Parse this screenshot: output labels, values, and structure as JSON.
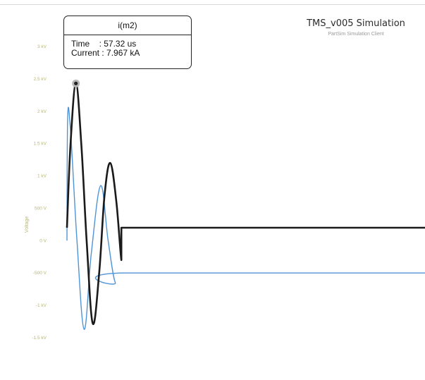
{
  "header": {
    "title": "TMS_v005 Simulation",
    "subtitle": "PartSim Simulation Client"
  },
  "tooltip": {
    "title": "i(m2)",
    "time_label": "Time",
    "time_value": "57.32 us",
    "current_label": "Current",
    "current_value": "7.967 kA"
  },
  "colors": {
    "primary_series": "#1a1a1a",
    "secondary_series": "#4f94d6",
    "axis_text": "#b7b870"
  },
  "chart_data": {
    "type": "line",
    "title": "TMS_v005 Simulation",
    "subtitle": "PartSim Simulation Client",
    "ylabel": "Voltage",
    "xlabel": "",
    "yticks": [
      "3 kV",
      "2.5 kV",
      "2 kV",
      "1.5 kV",
      "1 kV",
      "500 V",
      "0 V",
      "-500 V",
      "-1 kV",
      "-1.5 kV"
    ],
    "ytick_values": [
      3000,
      2500,
      2000,
      1500,
      1000,
      500,
      0,
      -500,
      -1000,
      -1500
    ],
    "ylim": [
      -1500,
      3000
    ],
    "x_range": [
      0,
      1
    ],
    "grid": false,
    "series": [
      {
        "name": "i(m2)",
        "color": "#1a1a1a",
        "points": [
          [
            0.0,
            200
          ],
          [
            0.01,
            1500
          ],
          [
            0.025,
            2430
          ],
          [
            0.04,
            1500
          ],
          [
            0.055,
            0
          ],
          [
            0.072,
            -1280
          ],
          [
            0.09,
            -500
          ],
          [
            0.105,
            700
          ],
          [
            0.121,
            1200
          ],
          [
            0.138,
            600
          ],
          [
            0.152,
            -300
          ],
          [
            0.152,
            200
          ],
          [
            1.0,
            200
          ]
        ]
      },
      {
        "color": "#4f94d6",
        "points": [
          [
            0.0,
            0
          ],
          [
            0.002,
            1900
          ],
          [
            0.01,
            1700
          ],
          [
            0.028,
            0
          ],
          [
            0.048,
            -1370
          ],
          [
            0.068,
            -200
          ],
          [
            0.094,
            850
          ],
          [
            0.115,
            0
          ],
          [
            0.135,
            -650
          ],
          [
            0.152,
            -500
          ],
          [
            1.0,
            -500
          ]
        ]
      }
    ],
    "marker": {
      "series": "i(m2)",
      "x": 0.025,
      "y": 2430
    }
  }
}
